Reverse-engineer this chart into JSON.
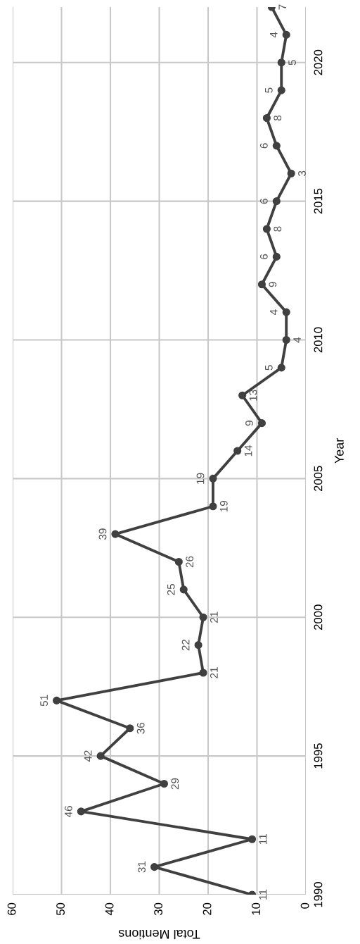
{
  "chart_data": {
    "type": "line",
    "orientation": "horizontal",
    "xlabel": "Total Mentions",
    "ylabel": "Year",
    "x": [
      1990,
      1991,
      1992,
      1993,
      1994,
      1995,
      1996,
      1997,
      1998,
      1999,
      2000,
      2001,
      2002,
      2003,
      2004,
      2005,
      2006,
      2007,
      2008,
      2009,
      2010,
      2011,
      2012,
      2013,
      2014,
      2015,
      2016,
      2017,
      2018,
      2019,
      2020,
      2021,
      2022
    ],
    "series": [
      {
        "color": "#404040",
        "values": [
          11,
          31,
          11,
          46,
          29,
          42,
          36,
          51,
          21,
          22,
          21,
          25,
          26,
          39,
          19,
          19,
          14,
          9,
          13,
          5,
          4,
          4,
          9,
          6,
          8,
          6,
          3,
          6,
          8,
          5,
          5,
          4,
          7
        ]
      }
    ],
    "xlim": [
      60,
      0
    ],
    "xticks": [
      60,
      50,
      40,
      30,
      20,
      10,
      0
    ],
    "ylim": [
      1990,
      2022
    ],
    "yticks": [
      1990,
      1995,
      2000,
      2005,
      2010,
      2015,
      2020
    ],
    "grid": true,
    "marker": "circle",
    "line_style": "solid",
    "data_labels": true
  }
}
